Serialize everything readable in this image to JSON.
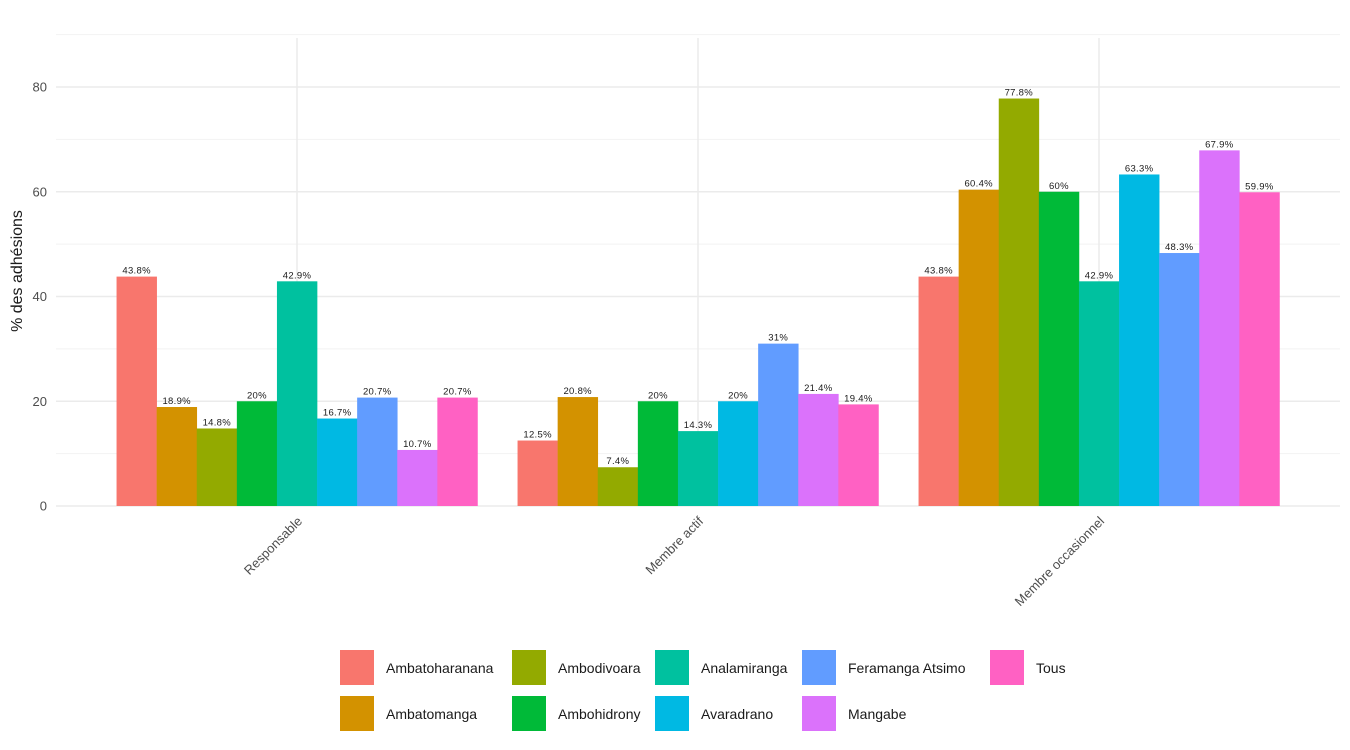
{
  "chart_data": {
    "type": "bar",
    "title": "",
    "xlabel": "",
    "ylabel": "% des adhésions",
    "ylim": [
      0,
      90
    ],
    "yticks": [
      0,
      20,
      40,
      60,
      80
    ],
    "grid": true,
    "legend_position": "bottom",
    "categories": [
      "Responsable",
      "Membre actif",
      "Membre occasionnel"
    ],
    "series": [
      {
        "name": "Ambatoharanana",
        "color": "#F8766D",
        "values": [
          43.8,
          12.5,
          43.8
        ],
        "labels": [
          "43.8%",
          "12.5%",
          "43.8%"
        ]
      },
      {
        "name": "Ambatomanga",
        "color": "#D39200",
        "values": [
          18.9,
          20.8,
          60.4
        ],
        "labels": [
          "18.9%",
          "20.8%",
          "60.4%"
        ]
      },
      {
        "name": "Ambodivoara",
        "color": "#93AA00",
        "values": [
          14.8,
          7.4,
          77.8
        ],
        "labels": [
          "14.8%",
          "7.4%",
          "77.8%"
        ]
      },
      {
        "name": "Ambohidrony",
        "color": "#00BA38",
        "values": [
          20,
          20,
          60
        ],
        "labels": [
          "20%",
          "20%",
          "60%"
        ]
      },
      {
        "name": "Analamiranga",
        "color": "#00C19F",
        "values": [
          42.9,
          14.3,
          42.9
        ],
        "labels": [
          "42.9%",
          "14.3%",
          "42.9%"
        ]
      },
      {
        "name": "Avaradrano",
        "color": "#00B9E3",
        "values": [
          16.7,
          20,
          63.3
        ],
        "labels": [
          "16.7%",
          "20%",
          "63.3%"
        ]
      },
      {
        "name": "Feramanga Atsimo",
        "color": "#619CFF",
        "values": [
          20.7,
          31,
          48.3
        ],
        "labels": [
          "20.7%",
          "31%",
          "48.3%"
        ]
      },
      {
        "name": "Mangabe",
        "color": "#DB72FB",
        "values": [
          10.7,
          21.4,
          67.9
        ],
        "labels": [
          "10.7%",
          "21.4%",
          "67.9%"
        ]
      },
      {
        "name": "Tous",
        "color": "#FF61C3",
        "values": [
          20.7,
          19.4,
          59.9
        ],
        "labels": [
          "20.7%",
          "19.4%",
          "59.9%"
        ]
      }
    ],
    "legend_order": [
      "Ambatoharanana",
      "Ambodivoara",
      "Analamiranga",
      "Feramanga Atsimo",
      "Tous",
      "Ambatomanga",
      "Ambohidrony",
      "Avaradrano",
      "Mangabe"
    ]
  }
}
